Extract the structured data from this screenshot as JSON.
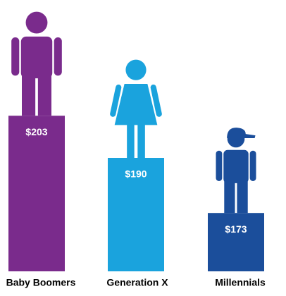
{
  "chart_data": {
    "type": "bar",
    "categories": [
      "Baby Boomers",
      "Generation X",
      "Millennials"
    ],
    "values": [
      203,
      190,
      173
    ],
    "value_labels": [
      "$203",
      "$190",
      "$173"
    ],
    "colors": [
      "#7a2b8c",
      "#1aa3dd",
      "#1b4e9b"
    ],
    "ylim": [
      155,
      215
    ]
  }
}
